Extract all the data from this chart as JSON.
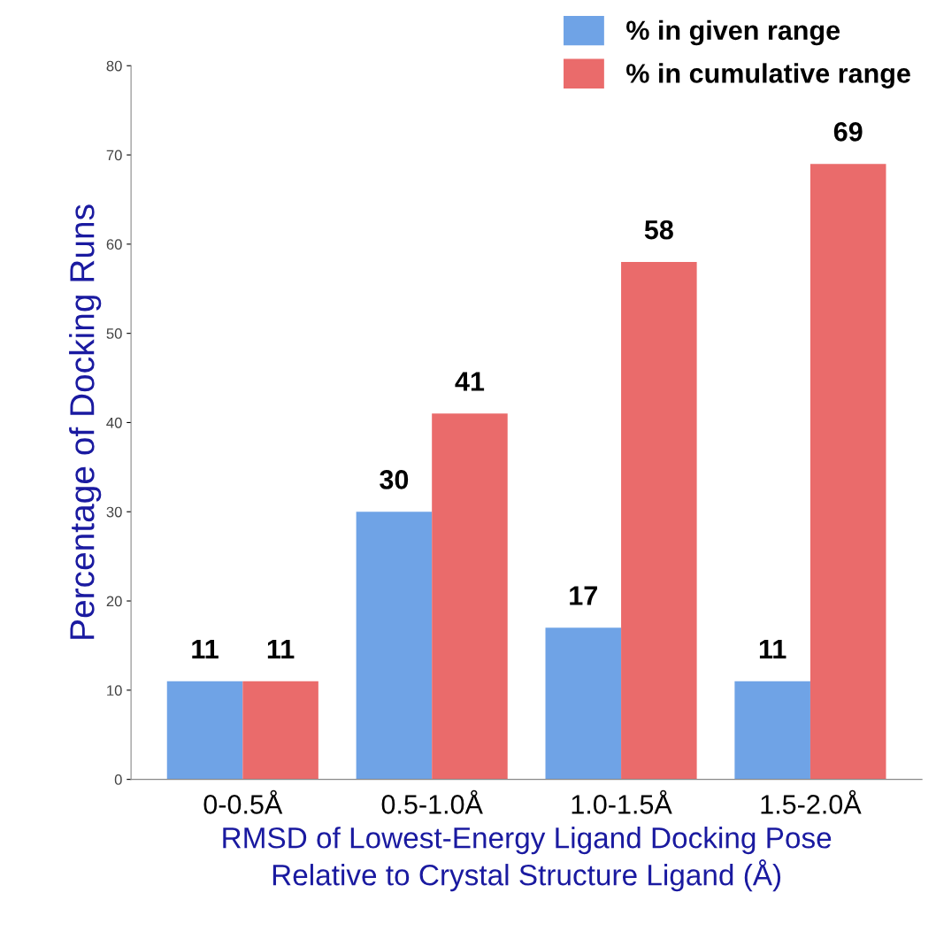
{
  "chart_data": {
    "type": "bar",
    "categories": [
      "0-0.5Å",
      "0.5-1.0Å",
      "1.0-1.5Å",
      "1.5-2.0Å"
    ],
    "series": [
      {
        "name": "% in given range",
        "color": "#6fa3e6",
        "values": [
          11,
          30,
          17,
          11
        ]
      },
      {
        "name": "% in cumulative range",
        "color": "#ea6b6b",
        "values": [
          11,
          41,
          58,
          69
        ]
      }
    ],
    "xlabel": "RMSD of Lowest-Energy Ligand Docking Pose\nRelative to Crystal Structure Ligand (Å)",
    "ylabel": "Percentage of Docking Runs",
    "ylim": [
      0,
      80
    ],
    "yticks": [
      0,
      10,
      20,
      30,
      40,
      50,
      60,
      70,
      80
    ],
    "grid": false,
    "legend": "top right",
    "data_labels": true
  }
}
